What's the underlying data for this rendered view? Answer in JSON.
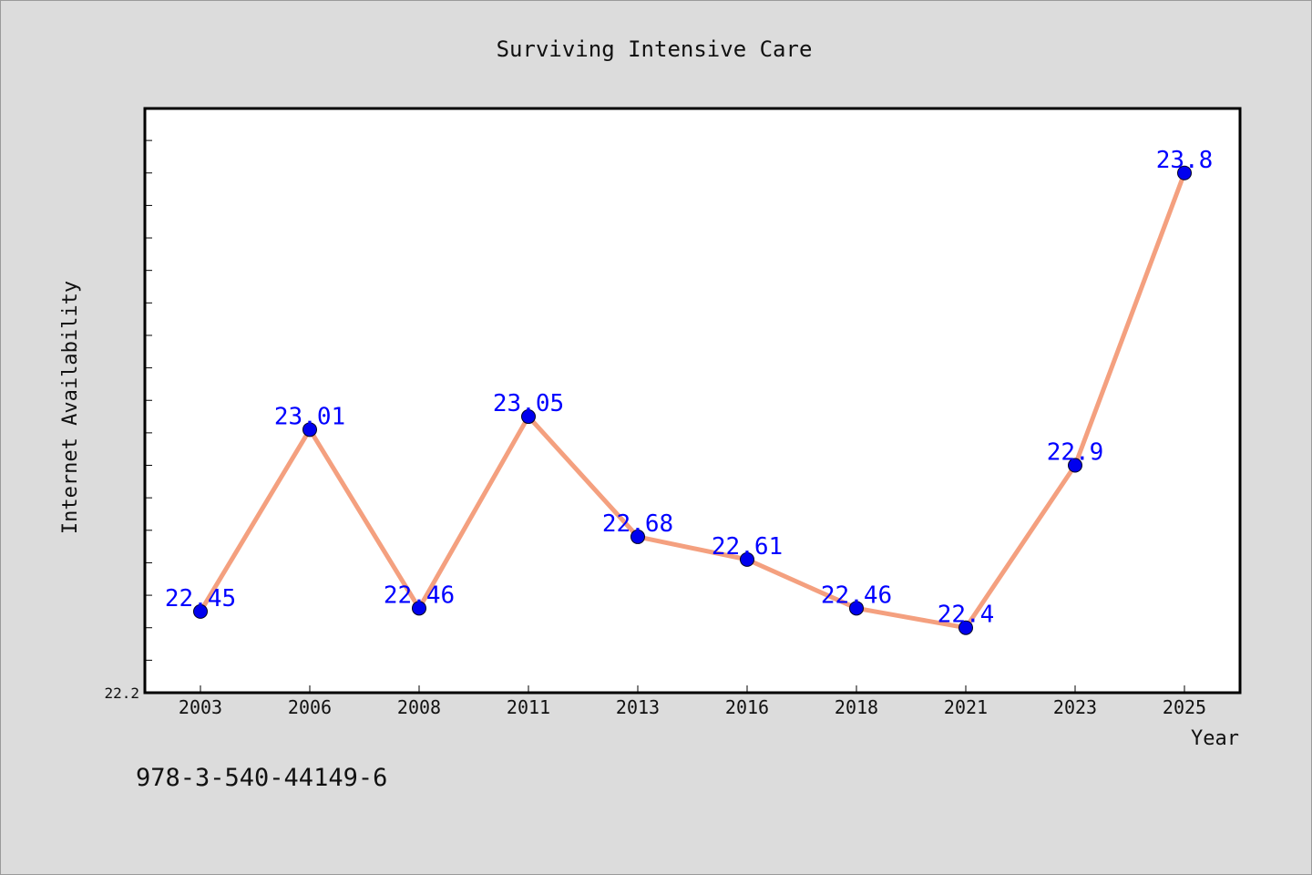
{
  "chart_data": {
    "type": "line",
    "title": "Surviving Intensive Care",
    "xlabel": "Year",
    "ylabel": "Internet Availability",
    "categories": [
      "2003",
      "2006",
      "2008",
      "2011",
      "2013",
      "2016",
      "2018",
      "2021",
      "2023",
      "2025"
    ],
    "series": [
      {
        "values": [
          22.45,
          23.01,
          22.46,
          23.05,
          22.68,
          22.61,
          22.46,
          22.4,
          22.9,
          23.8
        ],
        "labels": [
          "22.45",
          "23.01",
          "22.46",
          "23.05",
          "22.68",
          "22.61",
          "22.46",
          "22.4",
          "22.9",
          "23.8"
        ]
      }
    ],
    "y_tick_labels": [
      "22.2"
    ],
    "ylim": [
      22.2,
      24.0
    ],
    "grid": false,
    "colors": {
      "line": "#f4a07f",
      "marker": "#0000ee",
      "data_label": "#0000ff",
      "plot_bg": "#ffffff",
      "page_bg": "#dcdcdc"
    }
  },
  "footer": {
    "isbn": "978-3-540-44149-6"
  }
}
